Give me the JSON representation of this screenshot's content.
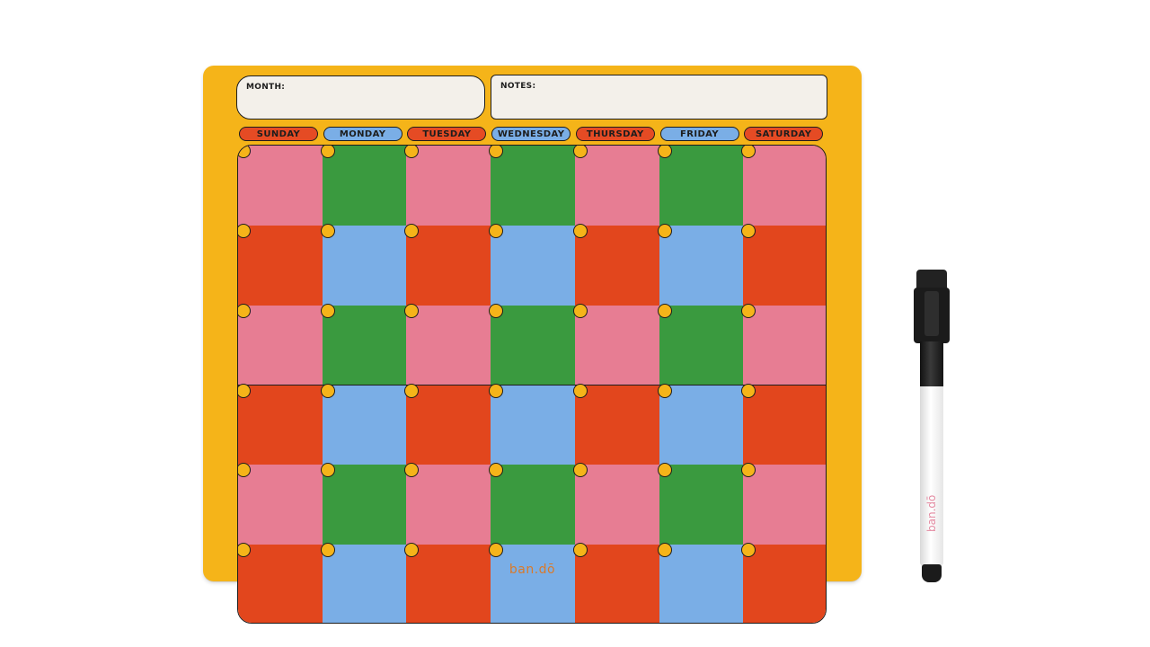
{
  "board": {
    "month_label": "MONTH:",
    "notes_label": "NOTES:",
    "days": [
      {
        "label": "SUNDAY",
        "color": "#e54b24"
      },
      {
        "label": "MONDAY",
        "color": "#7aaee6"
      },
      {
        "label": "TUESDAY",
        "color": "#e54b24"
      },
      {
        "label": "WEDNESDAY",
        "color": "#7aaee6"
      },
      {
        "label": "THURSDAY",
        "color": "#e54b24"
      },
      {
        "label": "FRIDAY",
        "color": "#7aaee6"
      },
      {
        "label": "SATURDAY",
        "color": "#e54b24"
      }
    ],
    "brand": "ban.dō",
    "colors": {
      "frame": "#f5b419",
      "pink": "#e77d93",
      "green": "#3a9a3f",
      "red": "#e2461d",
      "blue": "#7aaee6"
    },
    "rows": 6,
    "columns": 7
  },
  "marker": {
    "brand": "ban.dō"
  }
}
